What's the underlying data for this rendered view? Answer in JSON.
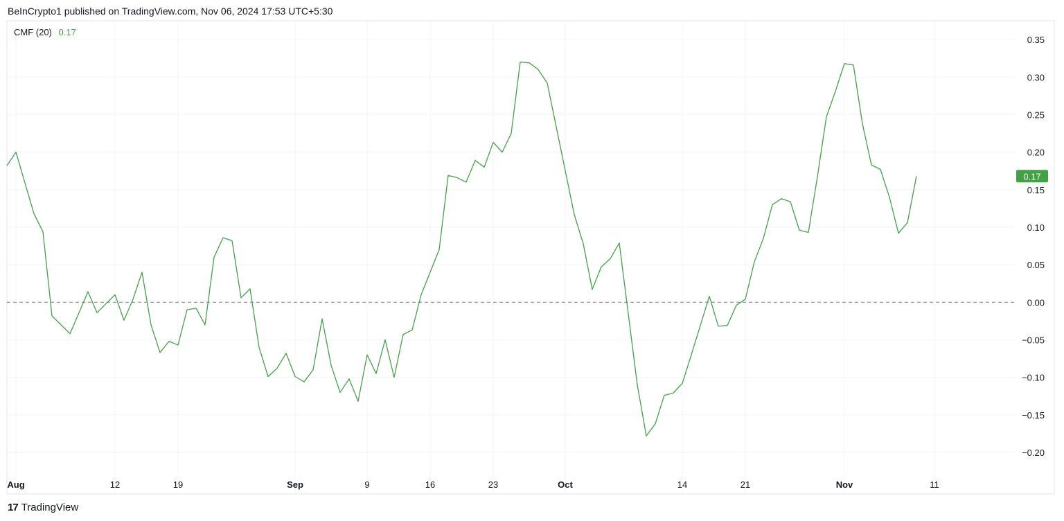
{
  "header": {
    "published_text": "BeInCrypto1 published on TradingView.com, Nov 06, 2024 17:53 UTC+5:30"
  },
  "legend": {
    "indicator_name": "CMF (20)",
    "current_value": "0.17"
  },
  "footer": {
    "logo_icon": "tradingview-logo-icon",
    "logo_mark": "17",
    "brand": "TradingView"
  },
  "colors": {
    "line": "#43a047",
    "badge": "#43a047",
    "grid": "#f0f3fa",
    "zero_line": "#787b86",
    "text": "#131722"
  },
  "chart_data": {
    "type": "line",
    "title": "CMF (20)",
    "ylim": [
      -0.225,
      0.375
    ],
    "grid": true,
    "zero_line": "dashed",
    "y_axis": "right",
    "last_value_label": "0.17",
    "y_ticks": [
      {
        "v": 0.35,
        "label": "0.35"
      },
      {
        "v": 0.3,
        "label": "0.30"
      },
      {
        "v": 0.25,
        "label": "0.25"
      },
      {
        "v": 0.2,
        "label": "0.20"
      },
      {
        "v": 0.15,
        "label": "0.15"
      },
      {
        "v": 0.1,
        "label": "0.10"
      },
      {
        "v": 0.05,
        "label": "0.05"
      },
      {
        "v": 0.0,
        "label": "0.00"
      },
      {
        "v": -0.05,
        "label": "−0.05"
      },
      {
        "v": -0.1,
        "label": "−0.10"
      },
      {
        "v": -0.15,
        "label": "−0.15"
      },
      {
        "v": -0.2,
        "label": "−0.20"
      }
    ],
    "x_ticks": [
      {
        "date": "2024-08-01",
        "label": "Aug",
        "bold": true
      },
      {
        "date": "2024-08-12",
        "label": "12",
        "bold": false
      },
      {
        "date": "2024-08-19",
        "label": "19",
        "bold": false
      },
      {
        "date": "2024-09-01",
        "label": "Sep",
        "bold": true
      },
      {
        "date": "2024-09-09",
        "label": "9",
        "bold": false
      },
      {
        "date": "2024-09-16",
        "label": "16",
        "bold": false
      },
      {
        "date": "2024-09-23",
        "label": "23",
        "bold": false
      },
      {
        "date": "2024-10-01",
        "label": "Oct",
        "bold": true
      },
      {
        "date": "2024-10-14",
        "label": "14",
        "bold": false
      },
      {
        "date": "2024-10-21",
        "label": "21",
        "bold": false
      },
      {
        "date": "2024-11-01",
        "label": "Nov",
        "bold": true
      },
      {
        "date": "2024-11-11",
        "label": "11",
        "bold": false
      }
    ],
    "x_range": [
      "2024-07-31",
      "2024-11-20"
    ],
    "series": [
      {
        "values": [
          [
            "2024-07-31",
            0.182
          ],
          [
            "2024-08-01",
            0.2
          ],
          [
            "2024-08-03",
            0.118
          ],
          [
            "2024-08-04",
            0.094
          ],
          [
            "2024-08-05",
            -0.018
          ],
          [
            "2024-08-07",
            -0.042
          ],
          [
            "2024-08-09",
            0.014
          ],
          [
            "2024-08-10",
            -0.014
          ],
          [
            "2024-08-12",
            0.01
          ],
          [
            "2024-08-13",
            -0.024
          ],
          [
            "2024-08-14",
            0.004
          ],
          [
            "2024-08-15",
            0.04
          ],
          [
            "2024-08-16",
            -0.03
          ],
          [
            "2024-08-17",
            -0.067
          ],
          [
            "2024-08-18",
            -0.052
          ],
          [
            "2024-08-19",
            -0.057
          ],
          [
            "2024-08-20",
            -0.01
          ],
          [
            "2024-08-21",
            -0.008
          ],
          [
            "2024-08-22",
            -0.03
          ],
          [
            "2024-08-23",
            0.06
          ],
          [
            "2024-08-24",
            0.086
          ],
          [
            "2024-08-25",
            0.082
          ],
          [
            "2024-08-26",
            0.006
          ],
          [
            "2024-08-27",
            0.018
          ],
          [
            "2024-08-28",
            -0.06
          ],
          [
            "2024-08-29",
            -0.099
          ],
          [
            "2024-08-30",
            -0.088
          ],
          [
            "2024-08-31",
            -0.068
          ],
          [
            "2024-09-01",
            -0.099
          ],
          [
            "2024-09-02",
            -0.106
          ],
          [
            "2024-09-03",
            -0.09
          ],
          [
            "2024-09-04",
            -0.022
          ],
          [
            "2024-09-05",
            -0.084
          ],
          [
            "2024-09-06",
            -0.12
          ],
          [
            "2024-09-07",
            -0.102
          ],
          [
            "2024-09-08",
            -0.132
          ],
          [
            "2024-09-09",
            -0.07
          ],
          [
            "2024-09-10",
            -0.095
          ],
          [
            "2024-09-11",
            -0.05
          ],
          [
            "2024-09-12",
            -0.1
          ],
          [
            "2024-09-13",
            -0.043
          ],
          [
            "2024-09-14",
            -0.037
          ],
          [
            "2024-09-15",
            0.01
          ],
          [
            "2024-09-17",
            0.07
          ],
          [
            "2024-09-18",
            0.169
          ],
          [
            "2024-09-19",
            0.166
          ],
          [
            "2024-09-20",
            0.16
          ],
          [
            "2024-09-21",
            0.189
          ],
          [
            "2024-09-22",
            0.18
          ],
          [
            "2024-09-23",
            0.213
          ],
          [
            "2024-09-24",
            0.2
          ],
          [
            "2024-09-25",
            0.225
          ],
          [
            "2024-09-26",
            0.32
          ],
          [
            "2024-09-27",
            0.319
          ],
          [
            "2024-09-28",
            0.31
          ],
          [
            "2024-09-29",
            0.292
          ],
          [
            "2024-10-02",
            0.117
          ],
          [
            "2024-10-03",
            0.078
          ],
          [
            "2024-10-04",
            0.017
          ],
          [
            "2024-10-05",
            0.047
          ],
          [
            "2024-10-06",
            0.058
          ],
          [
            "2024-10-07",
            0.079
          ],
          [
            "2024-10-09",
            -0.11
          ],
          [
            "2024-10-10",
            -0.178
          ],
          [
            "2024-10-11",
            -0.162
          ],
          [
            "2024-10-12",
            -0.124
          ],
          [
            "2024-10-13",
            -0.121
          ],
          [
            "2024-10-14",
            -0.108
          ],
          [
            "2024-10-15",
            -0.07
          ],
          [
            "2024-10-17",
            0.008
          ],
          [
            "2024-10-18",
            -0.032
          ],
          [
            "2024-10-19",
            -0.031
          ],
          [
            "2024-10-20",
            -0.004
          ],
          [
            "2024-10-21",
            0.004
          ],
          [
            "2024-10-22",
            0.054
          ],
          [
            "2024-10-23",
            0.085
          ],
          [
            "2024-10-24",
            0.13
          ],
          [
            "2024-10-25",
            0.138
          ],
          [
            "2024-10-26",
            0.134
          ],
          [
            "2024-10-27",
            0.096
          ],
          [
            "2024-10-28",
            0.093
          ],
          [
            "2024-10-29",
            0.167
          ],
          [
            "2024-10-30",
            0.247
          ],
          [
            "2024-10-31",
            0.281
          ],
          [
            "2024-11-01",
            0.318
          ],
          [
            "2024-11-02",
            0.316
          ],
          [
            "2024-11-03",
            0.238
          ],
          [
            "2024-11-04",
            0.183
          ],
          [
            "2024-11-05",
            0.177
          ],
          [
            "2024-11-06",
            0.14
          ],
          [
            "2024-11-07",
            0.092
          ],
          [
            "2024-11-08",
            0.106
          ],
          [
            "2024-11-09",
            0.168
          ]
        ]
      }
    ]
  }
}
